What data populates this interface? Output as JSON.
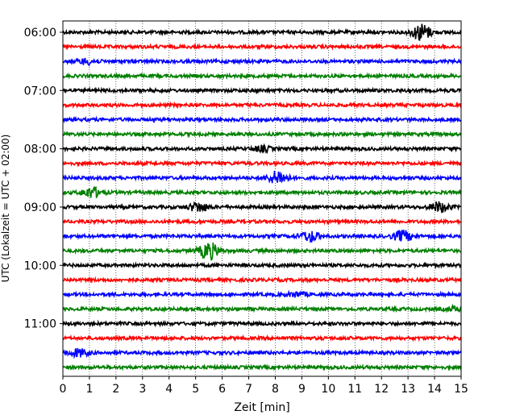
{
  "chart_data": {
    "type": "line",
    "title": "",
    "xlabel": "Zeit  [min]",
    "ylabel": "UTC (Lokalzeit = UTC + 02:00)",
    "xlim": [
      0,
      15
    ],
    "x_ticks": [
      "0",
      "1",
      "2",
      "3",
      "4",
      "5",
      "6",
      "7",
      "8",
      "9",
      "10",
      "11",
      "12",
      "13",
      "14",
      "15"
    ],
    "y_tick_labels": [
      "06:00",
      "07:00",
      "08:00",
      "09:00",
      "10:00",
      "11:00"
    ],
    "grid": "vertical dotted",
    "trace_interval_minutes": 15,
    "trace_colors": [
      "#000000",
      "#ff0000",
      "#0000ff",
      "#008000"
    ],
    "traces": [
      {
        "start": "06:00",
        "events": [
          {
            "minute": 13.5,
            "amplitude": 1.0
          }
        ]
      },
      {
        "start": "06:15",
        "events": []
      },
      {
        "start": "06:30",
        "events": [
          {
            "minute": 0.9,
            "amplitude": 0.3
          }
        ]
      },
      {
        "start": "06:45",
        "events": []
      },
      {
        "start": "07:00",
        "events": []
      },
      {
        "start": "07:15",
        "events": []
      },
      {
        "start": "07:30",
        "events": []
      },
      {
        "start": "07:45",
        "events": []
      },
      {
        "start": "08:00",
        "events": [
          {
            "minute": 7.5,
            "amplitude": 0.3
          }
        ]
      },
      {
        "start": "08:15",
        "events": []
      },
      {
        "start": "08:30",
        "events": [
          {
            "minute": 8.1,
            "amplitude": 0.8
          }
        ]
      },
      {
        "start": "08:45",
        "events": [
          {
            "minute": 1.1,
            "amplitude": 0.6
          }
        ]
      },
      {
        "start": "09:00",
        "events": [
          {
            "minute": 5.1,
            "amplitude": 0.55
          },
          {
            "minute": 14.2,
            "amplitude": 0.6
          }
        ]
      },
      {
        "start": "09:15",
        "events": []
      },
      {
        "start": "09:30",
        "events": [
          {
            "minute": 9.3,
            "amplitude": 0.6
          },
          {
            "minute": 12.8,
            "amplitude": 0.65
          }
        ]
      },
      {
        "start": "09:45",
        "events": [
          {
            "minute": 5.5,
            "amplitude": 1.0
          }
        ]
      },
      {
        "start": "10:00",
        "events": []
      },
      {
        "start": "10:15",
        "events": []
      },
      {
        "start": "10:30",
        "events": [
          {
            "minute": 8.8,
            "amplitude": 0.25
          }
        ]
      },
      {
        "start": "10:45",
        "events": [
          {
            "minute": 14.8,
            "amplitude": 0.25
          }
        ]
      },
      {
        "start": "11:00",
        "events": []
      },
      {
        "start": "11:15",
        "events": []
      },
      {
        "start": "11:30",
        "events": [
          {
            "minute": 0.6,
            "amplitude": 0.45
          }
        ]
      },
      {
        "start": "11:45",
        "events": []
      }
    ]
  }
}
